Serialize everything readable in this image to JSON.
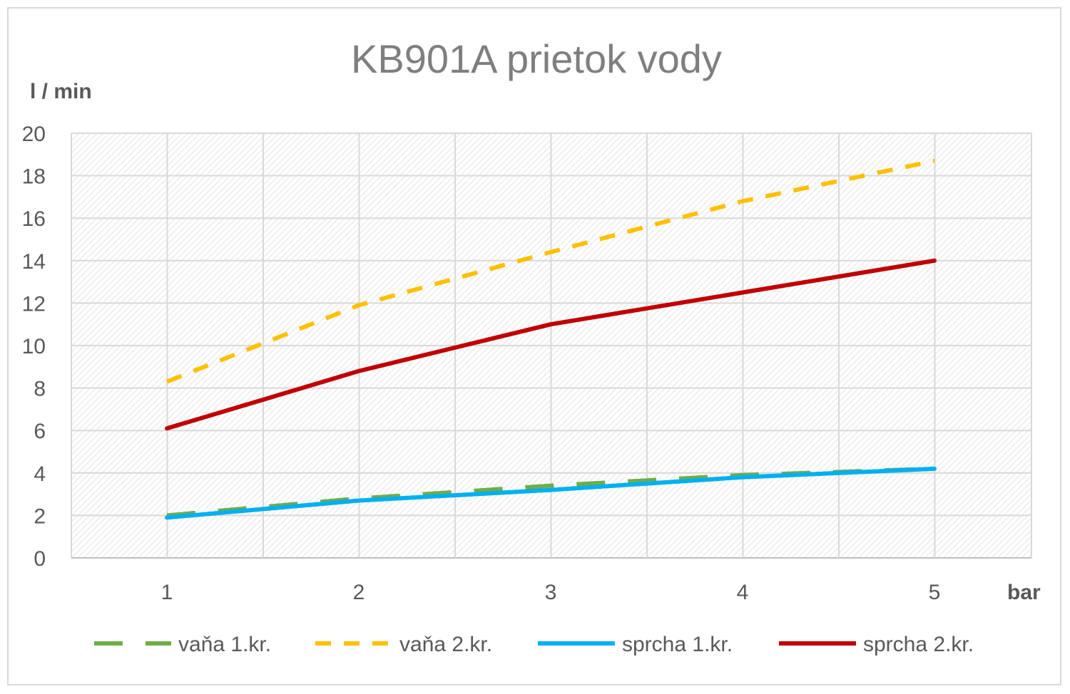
{
  "chart_data": {
    "type": "line",
    "title": "KB901A prietok vody",
    "ylabel": "l / min",
    "xlabel": "bar",
    "x": [
      1,
      2,
      3,
      4,
      5
    ],
    "ylim": [
      0,
      20
    ],
    "yticks": [
      0,
      2,
      4,
      6,
      8,
      10,
      12,
      14,
      16,
      18,
      20
    ],
    "grid": true,
    "legend_position": "bottom",
    "series": [
      {
        "name": "vaňa 1.kr.",
        "values": [
          2.0,
          2.8,
          3.4,
          3.9,
          4.2
        ],
        "color": "#70ad47",
        "dash": "long-dash"
      },
      {
        "name": "vaňa 2.kr.",
        "values": [
          8.3,
          11.9,
          14.4,
          16.8,
          18.7
        ],
        "color": "#ffc000",
        "dash": "dash"
      },
      {
        "name": "sprcha 1.kr.",
        "values": [
          1.9,
          2.7,
          3.2,
          3.8,
          4.2
        ],
        "color": "#00b0f0",
        "dash": "solid"
      },
      {
        "name": "sprcha 2.kr.",
        "values": [
          6.1,
          8.8,
          11.0,
          12.5,
          14.0
        ],
        "color": "#c00000",
        "dash": "solid"
      }
    ]
  }
}
